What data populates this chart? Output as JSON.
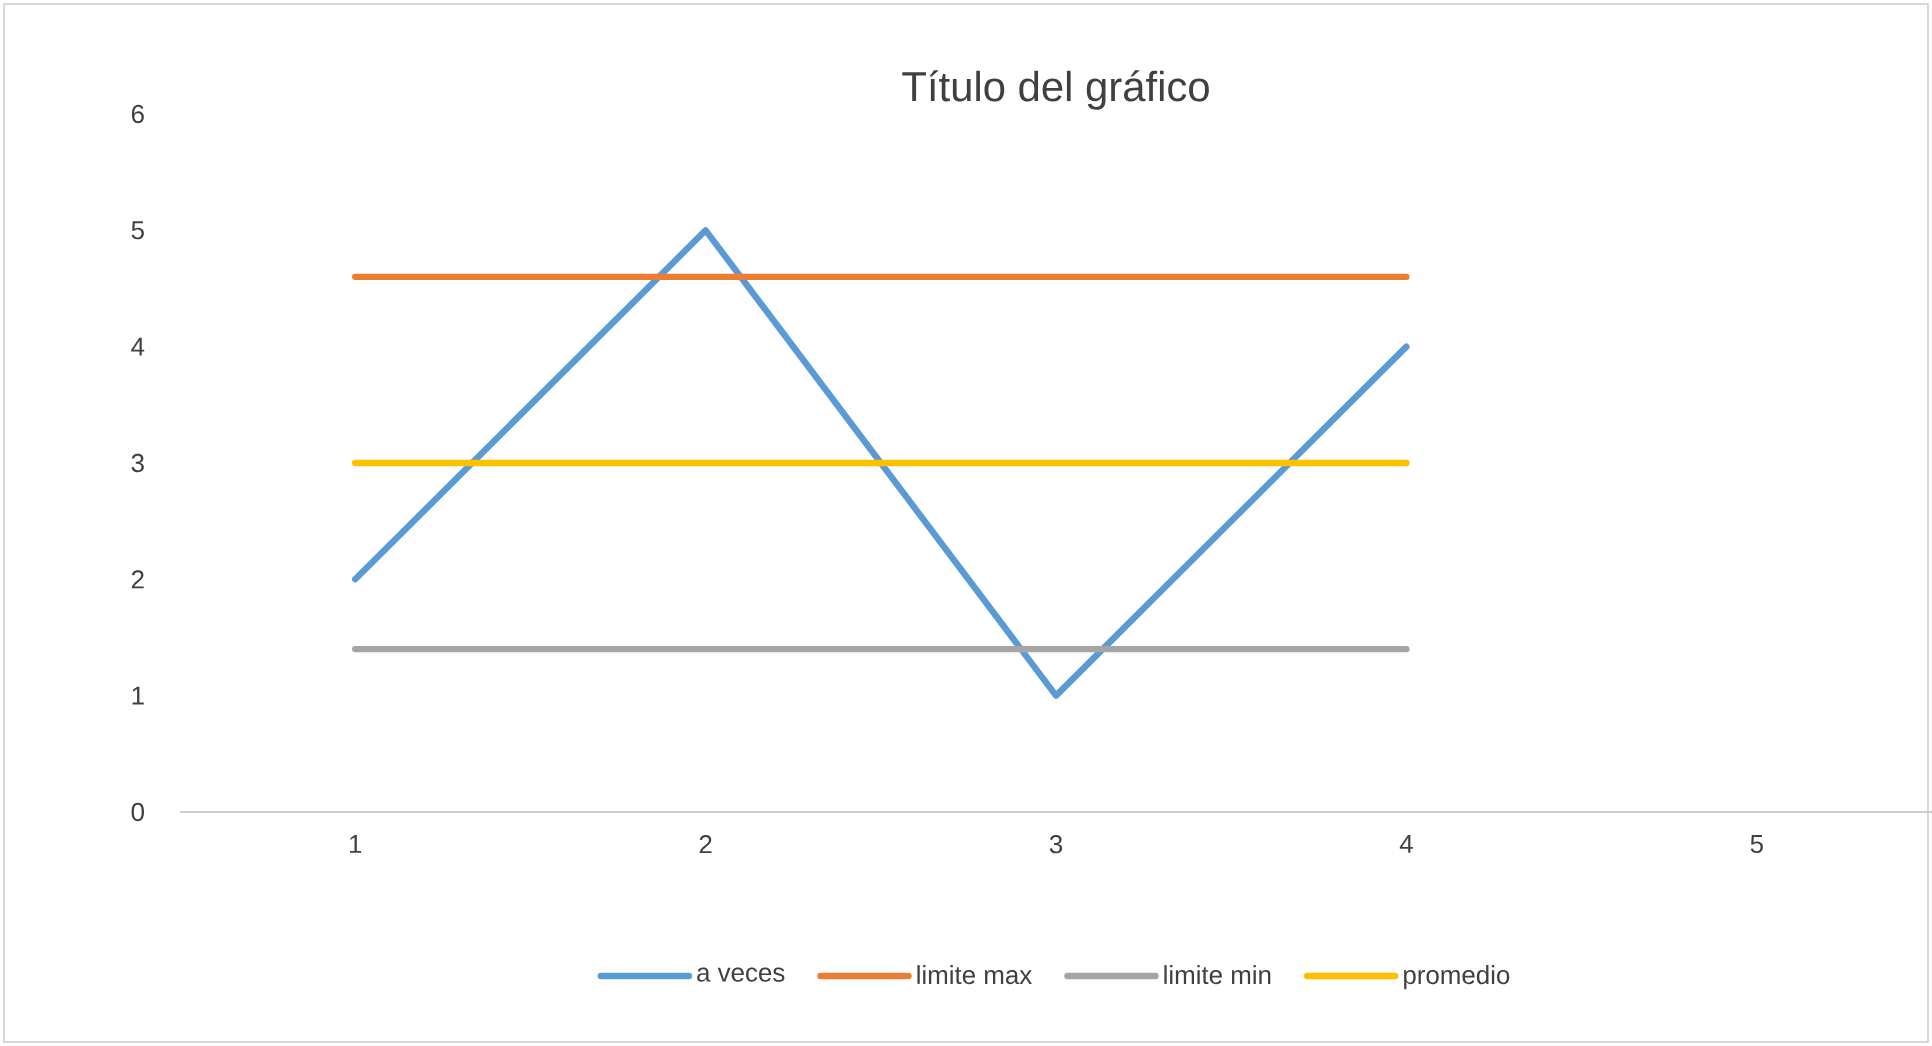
{
  "chart_data": {
    "type": "line",
    "title": "Título del gráfico",
    "categories": [
      "1",
      "2",
      "3",
      "4",
      "5"
    ],
    "series": [
      {
        "name": "a veces",
        "color": "#5b9bd5",
        "values": [
          2,
          5,
          1,
          4,
          null
        ]
      },
      {
        "name": "limite max",
        "color": "#ed7d31",
        "values": [
          4.6,
          4.6,
          4.6,
          4.6,
          null
        ]
      },
      {
        "name": "limite min",
        "color": "#a5a5a5",
        "values": [
          1.4,
          1.4,
          1.4,
          1.4,
          null
        ]
      },
      {
        "name": "promedio",
        "color": "#ffc000",
        "values": [
          3,
          3,
          3,
          3,
          null
        ]
      }
    ],
    "ylim": [
      0,
      6
    ],
    "yticks": [
      0,
      1,
      2,
      3,
      4,
      5,
      6
    ],
    "grid": false,
    "legend": "bottom",
    "marker": "none",
    "line_style": "solid"
  }
}
